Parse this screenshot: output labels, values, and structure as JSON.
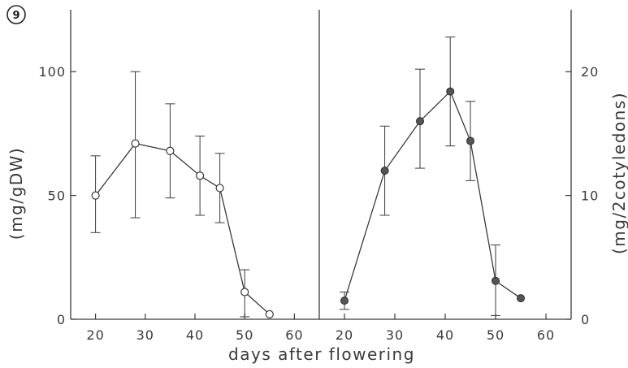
{
  "figure_label": "9",
  "chart_data": [
    {
      "type": "line",
      "panel": "left",
      "xlabel": "days after flowering",
      "ylabel": "(mg/gDW)",
      "x_ticks": [
        "20",
        "30",
        "40",
        "50",
        "60"
      ],
      "y_ticks": [
        "0",
        "50",
        "100"
      ],
      "xlim": [
        15,
        65
      ],
      "ylim": [
        0,
        125
      ],
      "marker": "open-circle",
      "series": [
        {
          "x": [
            20,
            28,
            35,
            41,
            45,
            50,
            55
          ],
          "y": [
            50,
            71,
            68,
            58,
            53,
            11,
            2
          ],
          "err_low": [
            35,
            41,
            49,
            42,
            39,
            1,
            null
          ],
          "err_high": [
            66,
            100,
            87,
            74,
            67,
            20,
            null
          ]
        }
      ]
    },
    {
      "type": "line",
      "panel": "right",
      "xlabel": "days after flowering",
      "ylabel": "(mg/2cotyledons)",
      "x_ticks": [
        "20",
        "30",
        "40",
        "50",
        "60"
      ],
      "y_ticks": [
        "0",
        "10",
        "20"
      ],
      "xlim": [
        15,
        65
      ],
      "ylim": [
        0,
        25
      ],
      "marker": "filled-circle",
      "series": [
        {
          "x": [
            20,
            28,
            35,
            41,
            45,
            50,
            55
          ],
          "y": [
            1.5,
            12,
            16,
            18.4,
            14.4,
            3.1,
            1.7
          ],
          "err_low": [
            0.8,
            8.4,
            12.2,
            14,
            11.2,
            0.3,
            null
          ],
          "err_high": [
            2.2,
            15.6,
            20.2,
            22.8,
            17.6,
            6,
            null
          ]
        }
      ]
    }
  ],
  "colors": {
    "ink": "#3a3a3a",
    "open_marker_fill": "#ffffff",
    "filled_marker": "#555555"
  }
}
